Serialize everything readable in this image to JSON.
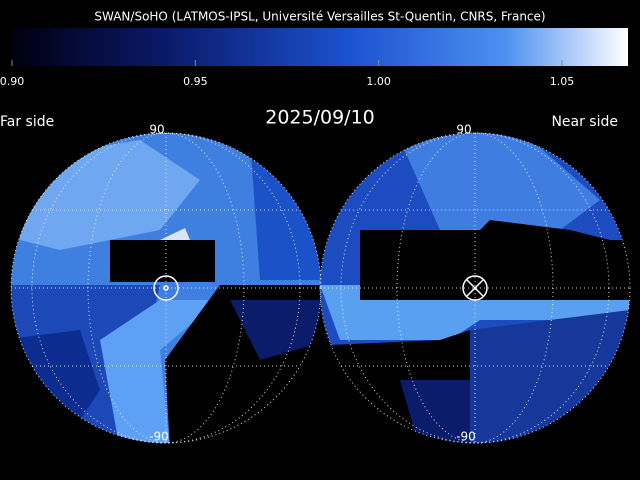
{
  "header": {
    "title": "SWAN/SoHO (LATMOS-IPSL, Université Versailles St-Quentin, CNRS, France)",
    "date": "2025/09/10"
  },
  "colorbar": {
    "lim": [
      0.9,
      1.068
    ],
    "ticks": [
      {
        "value": 0.9,
        "label": "0.90"
      },
      {
        "value": 0.95,
        "label": "0.95"
      },
      {
        "value": 1.0,
        "label": "1.00"
      },
      {
        "value": 1.05,
        "label": "1.05"
      }
    ]
  },
  "hemispheres": [
    {
      "label": "Far side",
      "top_label": "90",
      "bottom_label": "-90"
    },
    {
      "label": "Near side",
      "top_label": "90",
      "bottom_label": "-90"
    }
  ]
}
